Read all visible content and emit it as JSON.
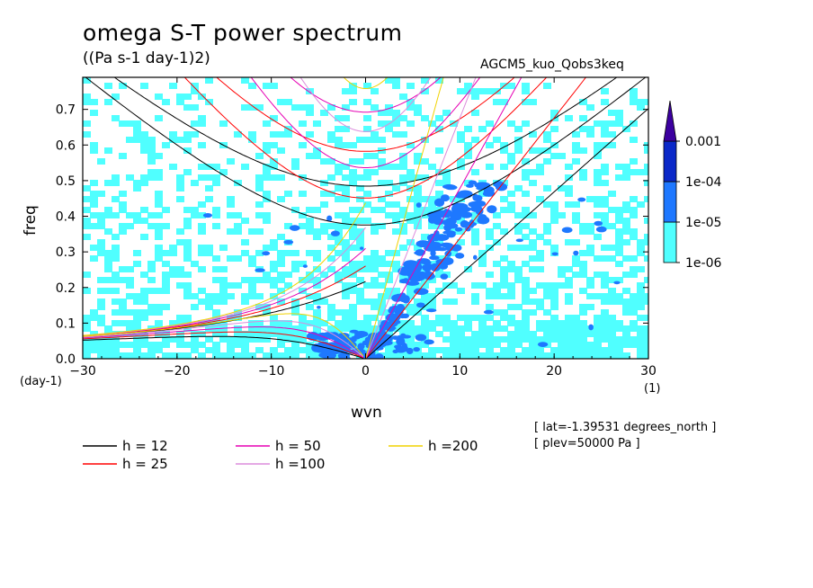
{
  "title": "omega S-T power spectrum",
  "subtitle": "((Pa s-1 day-1)2)",
  "case_name": "AGCM5_kuo_Qobs3keq",
  "info": [
    "[ lat=-1.39531 degrees_north ]",
    "[ plev=50000 Pa ]"
  ],
  "x_unit": "(1)",
  "y_unit": "(day-1)",
  "legend": [
    {
      "label": "h = 12",
      "color": "#000000"
    },
    {
      "label": "h = 25",
      "color": "#ff0000"
    },
    {
      "label": "h = 50",
      "color": "#e600b4"
    },
    {
      "label": "h =100",
      "color": "#dc8cdc"
    },
    {
      "label": "h =200",
      "color": "#f0d200"
    }
  ],
  "colorbar": {
    "levels": [
      "1e-06",
      "1e-05",
      "1e-04",
      "0.001"
    ],
    "colors": [
      "#50ffff",
      "#1e78ff",
      "#0a28c8",
      "#3c00a0"
    ]
  },
  "chart_data": {
    "type": "heatmap",
    "title": "omega S-T power spectrum",
    "xlabel": "wvn",
    "ylabel": "freq",
    "xlim": [
      -30,
      30
    ],
    "ylim": [
      0,
      0.79
    ],
    "x_ticks": [
      "−30",
      "−20",
      "−10",
      "0",
      "10",
      "20",
      "30"
    ],
    "x_tick_values": [
      -30,
      -20,
      -10,
      0,
      10,
      20,
      30
    ],
    "y_ticks": [
      "0.0",
      "0.1",
      "0.2",
      "0.3",
      "0.4",
      "0.5",
      "0.6",
      "0.7"
    ],
    "y_tick_values": [
      0,
      0.1,
      0.2,
      0.3,
      0.4,
      0.5,
      0.6,
      0.7
    ],
    "grid": false,
    "shading_levels": [
      1e-06,
      1e-05,
      0.0001,
      0.001
    ],
    "dispersion_curves_equivalent_depth_m": [
      12,
      25,
      50,
      100,
      200
    ]
  }
}
